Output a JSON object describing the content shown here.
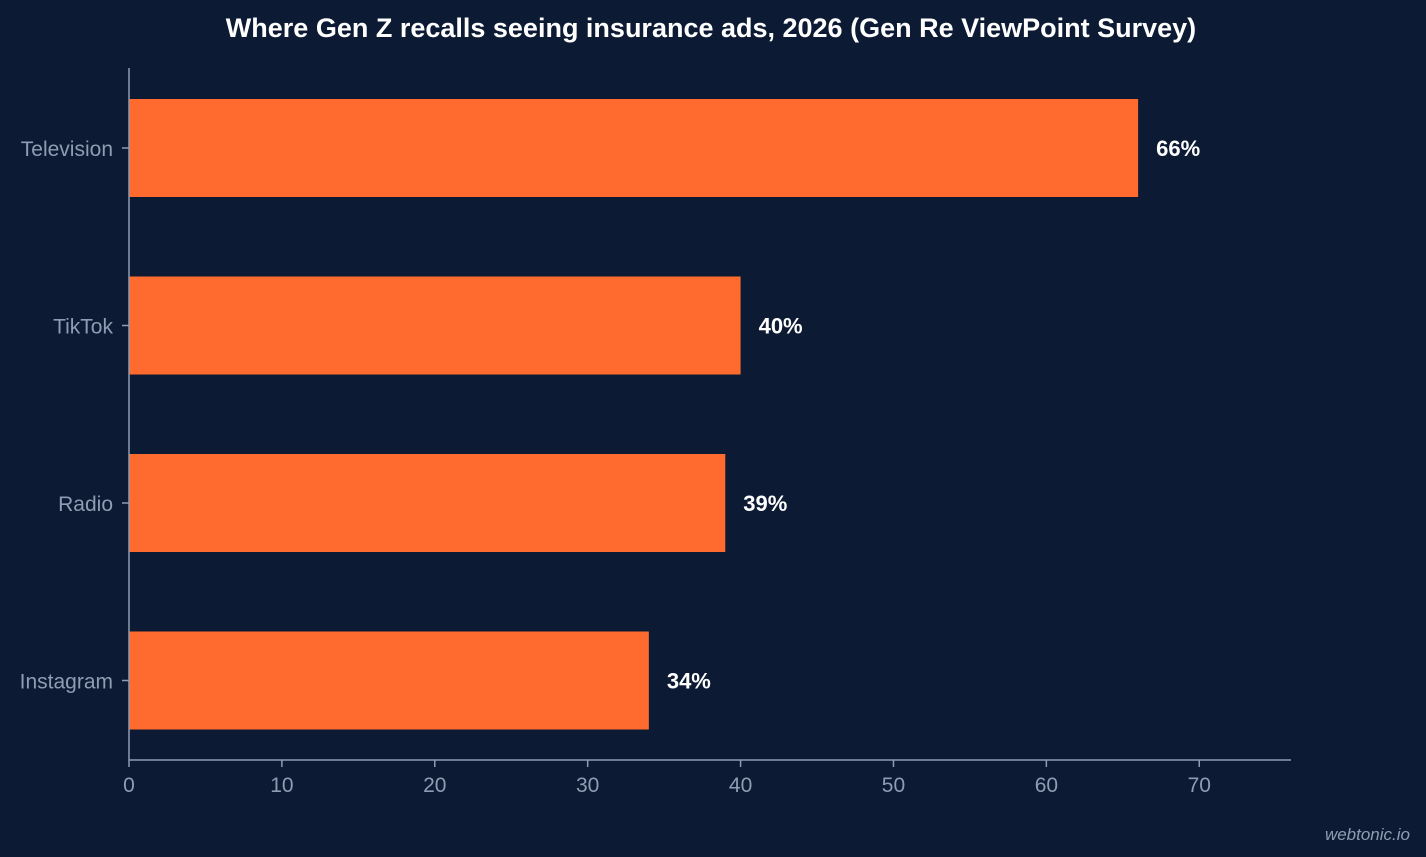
{
  "watermark": "webtonic.io",
  "chart_data": {
    "type": "bar",
    "orientation": "horizontal",
    "title": "Where Gen Z recalls seeing insurance ads, 2026 (Gen Re ViewPoint Survey)",
    "xlabel": "",
    "ylabel": "",
    "categories": [
      "Television",
      "TikTok",
      "Radio",
      "Instagram"
    ],
    "values": [
      66,
      40,
      39,
      34
    ],
    "value_labels": [
      "66%",
      "40%",
      "39%",
      "34%"
    ],
    "xlim": [
      0,
      76
    ],
    "x_ticks": [
      0,
      10,
      20,
      30,
      40,
      50,
      60,
      70
    ],
    "grid": false,
    "bar_color": "#ff6b2e",
    "background_color": "#0c1b33",
    "text_color": "#ffffff",
    "axis_color": "#8f9db3"
  }
}
